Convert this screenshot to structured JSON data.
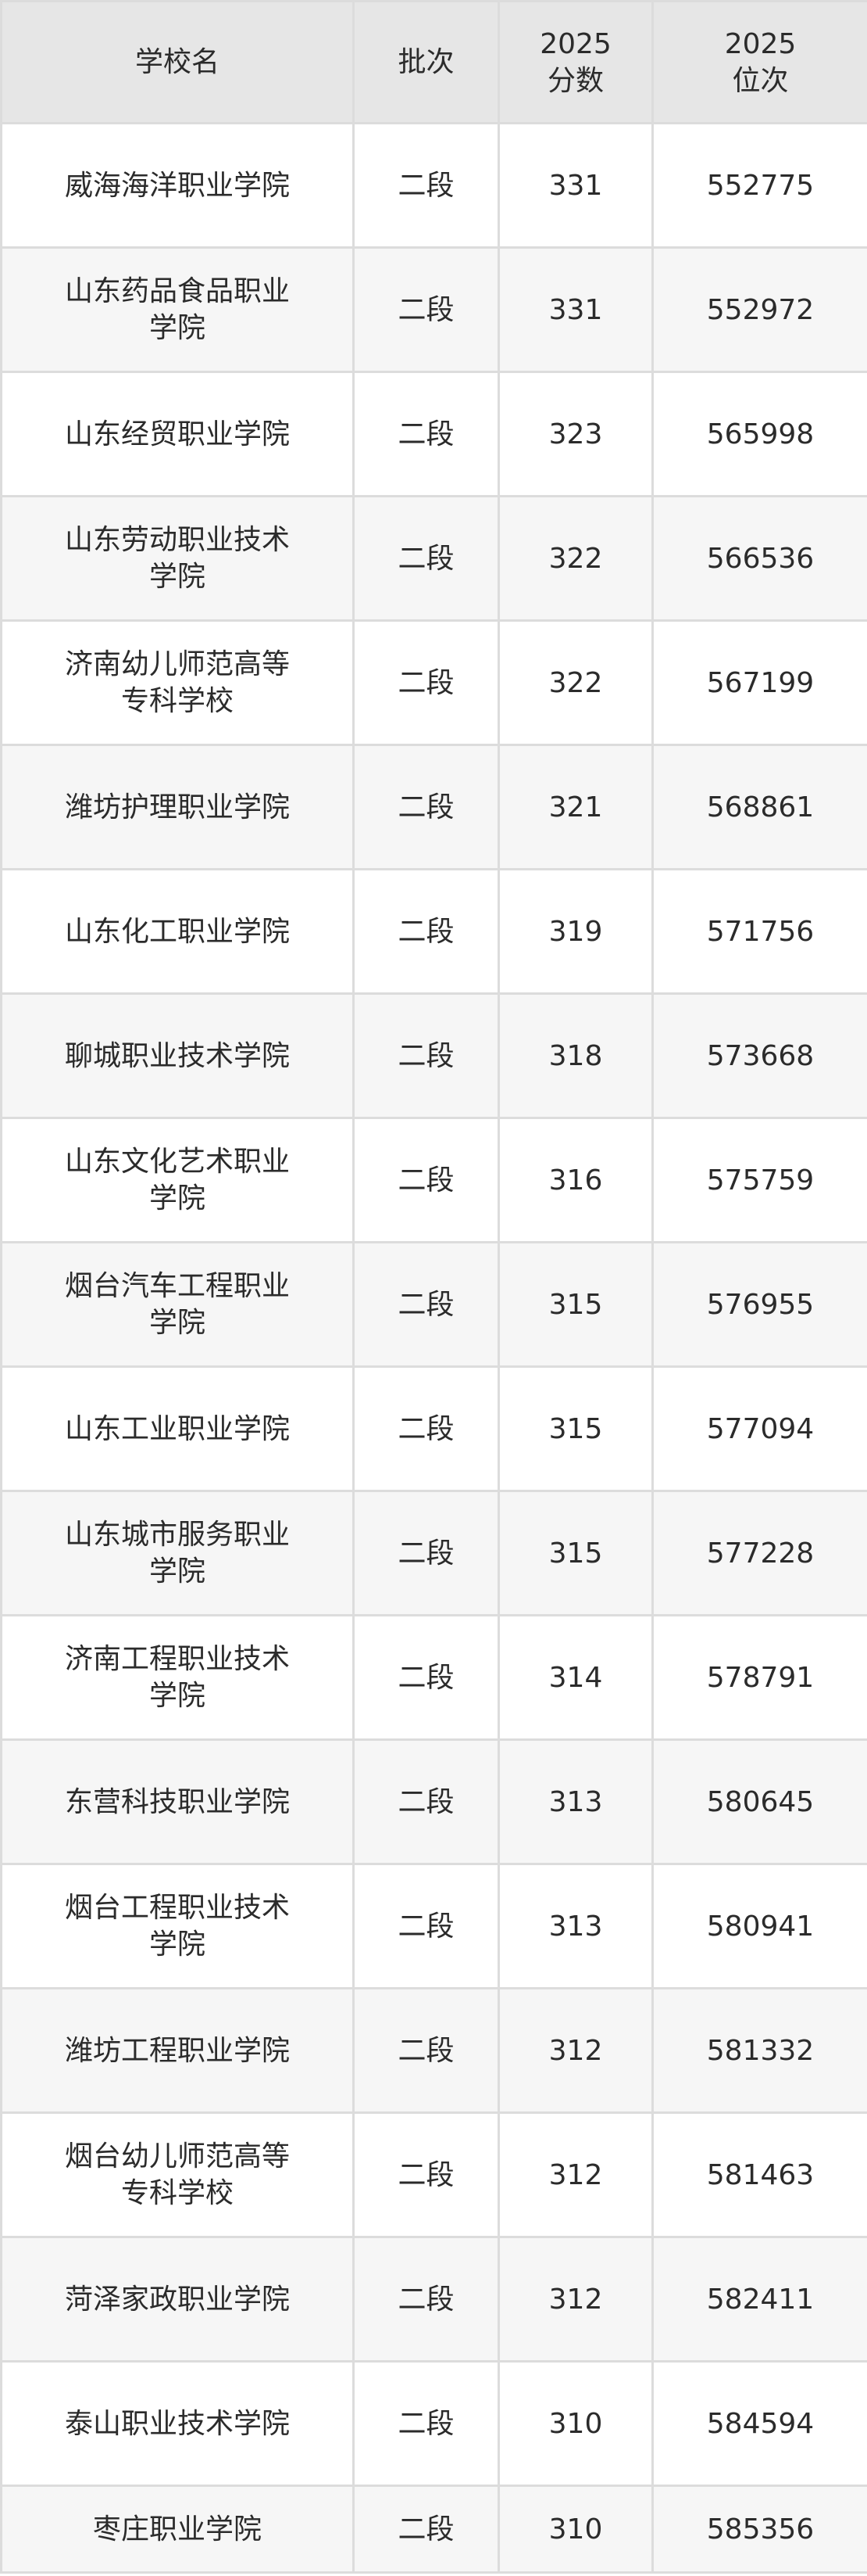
{
  "headers": {
    "school": "学校名",
    "batch": "批次",
    "score": "2025\n分数",
    "rank": "2025\n位次"
  },
  "header_parts": {
    "score_year": "2025",
    "score_label": "分数",
    "rank_year": "2025",
    "rank_label": "位次"
  },
  "rows": [
    {
      "school": "威海海洋职业学院",
      "batch": "二段",
      "score": "331",
      "rank": "552775"
    },
    {
      "school": "山东药品食品职业学院",
      "batch": "二段",
      "score": "331",
      "rank": "552972"
    },
    {
      "school": "山东经贸职业学院",
      "batch": "二段",
      "score": "323",
      "rank": "565998"
    },
    {
      "school": "山东劳动职业技术学院",
      "batch": "二段",
      "score": "322",
      "rank": "566536"
    },
    {
      "school": "济南幼儿师范高等专科学校",
      "batch": "二段",
      "score": "322",
      "rank": "567199"
    },
    {
      "school": "潍坊护理职业学院",
      "batch": "二段",
      "score": "321",
      "rank": "568861"
    },
    {
      "school": "山东化工职业学院",
      "batch": "二段",
      "score": "319",
      "rank": "571756"
    },
    {
      "school": "聊城职业技术学院",
      "batch": "二段",
      "score": "318",
      "rank": "573668"
    },
    {
      "school": "山东文化艺术职业学院",
      "batch": "二段",
      "score": "316",
      "rank": "575759"
    },
    {
      "school": "烟台汽车工程职业学院",
      "batch": "二段",
      "score": "315",
      "rank": "576955"
    },
    {
      "school": "山东工业职业学院",
      "batch": "二段",
      "score": "315",
      "rank": "577094"
    },
    {
      "school": "山东城市服务职业学院",
      "batch": "二段",
      "score": "315",
      "rank": "577228"
    },
    {
      "school": "济南工程职业技术学院",
      "batch": "二段",
      "score": "314",
      "rank": "578791"
    },
    {
      "school": "东营科技职业学院",
      "batch": "二段",
      "score": "313",
      "rank": "580645"
    },
    {
      "school": "烟台工程职业技术学院",
      "batch": "二段",
      "score": "313",
      "rank": "580941"
    },
    {
      "school": "潍坊工程职业学院",
      "batch": "二段",
      "score": "312",
      "rank": "581332"
    },
    {
      "school": "烟台幼儿师范高等专科学校",
      "batch": "二段",
      "score": "312",
      "rank": "581463"
    },
    {
      "school": "菏泽家政职业学院",
      "batch": "二段",
      "score": "312",
      "rank": "582411"
    },
    {
      "school": "泰山职业技术学院",
      "batch": "二段",
      "score": "310",
      "rank": "584594"
    },
    {
      "school": "枣庄职业学院",
      "batch": "二段",
      "score": "310",
      "rank": "585356"
    }
  ],
  "colors": {
    "header_bg": "#e6e6e6",
    "row_alt_bg": "#f6f6f6",
    "border": "#dcdcdc",
    "text": "#2b2b2b"
  }
}
